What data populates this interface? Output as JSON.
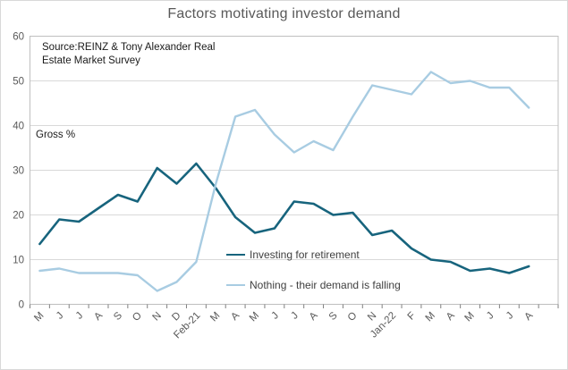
{
  "chart_data": {
    "type": "line",
    "title": "Factors motivating investor demand",
    "source_note": [
      "Source:REINZ & Tony Alexander Real",
      "Estate Market Survey"
    ],
    "inner_label": "Gross %",
    "categories": [
      "M",
      "J",
      "J",
      "A",
      "S",
      "O",
      "N",
      "D",
      "Feb-21",
      "M",
      "A",
      "M",
      "J",
      "J",
      "A",
      "S",
      "O",
      "N",
      "Jan-22",
      "F",
      "M",
      "A",
      "M",
      "J",
      "J",
      "A"
    ],
    "series": [
      {
        "name": "Investing for retirement",
        "color": "#17647d",
        "values": [
          13.5,
          19,
          18.5,
          21.5,
          24.5,
          23,
          30.5,
          27,
          31.5,
          26,
          19.5,
          16,
          17,
          23,
          22.5,
          20,
          20.5,
          15.5,
          16.5,
          12.5,
          10,
          9.5,
          7.5,
          8,
          7,
          8.5
        ]
      },
      {
        "name": "Nothing - their demand is falling",
        "color": "#a8cce2",
        "values": [
          7.5,
          8,
          7,
          7,
          7,
          6.5,
          3,
          5,
          9.5,
          27,
          42,
          43.5,
          38,
          34,
          36.5,
          34.5,
          42,
          49,
          48,
          47,
          52,
          49.5,
          50,
          48.5,
          48.5,
          44
        ]
      }
    ],
    "y_axis": {
      "min": 0,
      "max": 60,
      "step": 10,
      "tick_labels": [
        "0",
        "10",
        "20",
        "30",
        "40",
        "50",
        "60"
      ]
    },
    "grid": true,
    "legend_position": "inside-center",
    "colors": {
      "gridline": "#d9d9d9",
      "plot_border": "#bfbfbf",
      "tick": "#7f7f7f",
      "axis_text": "#595959",
      "title_text": "#595959"
    }
  }
}
